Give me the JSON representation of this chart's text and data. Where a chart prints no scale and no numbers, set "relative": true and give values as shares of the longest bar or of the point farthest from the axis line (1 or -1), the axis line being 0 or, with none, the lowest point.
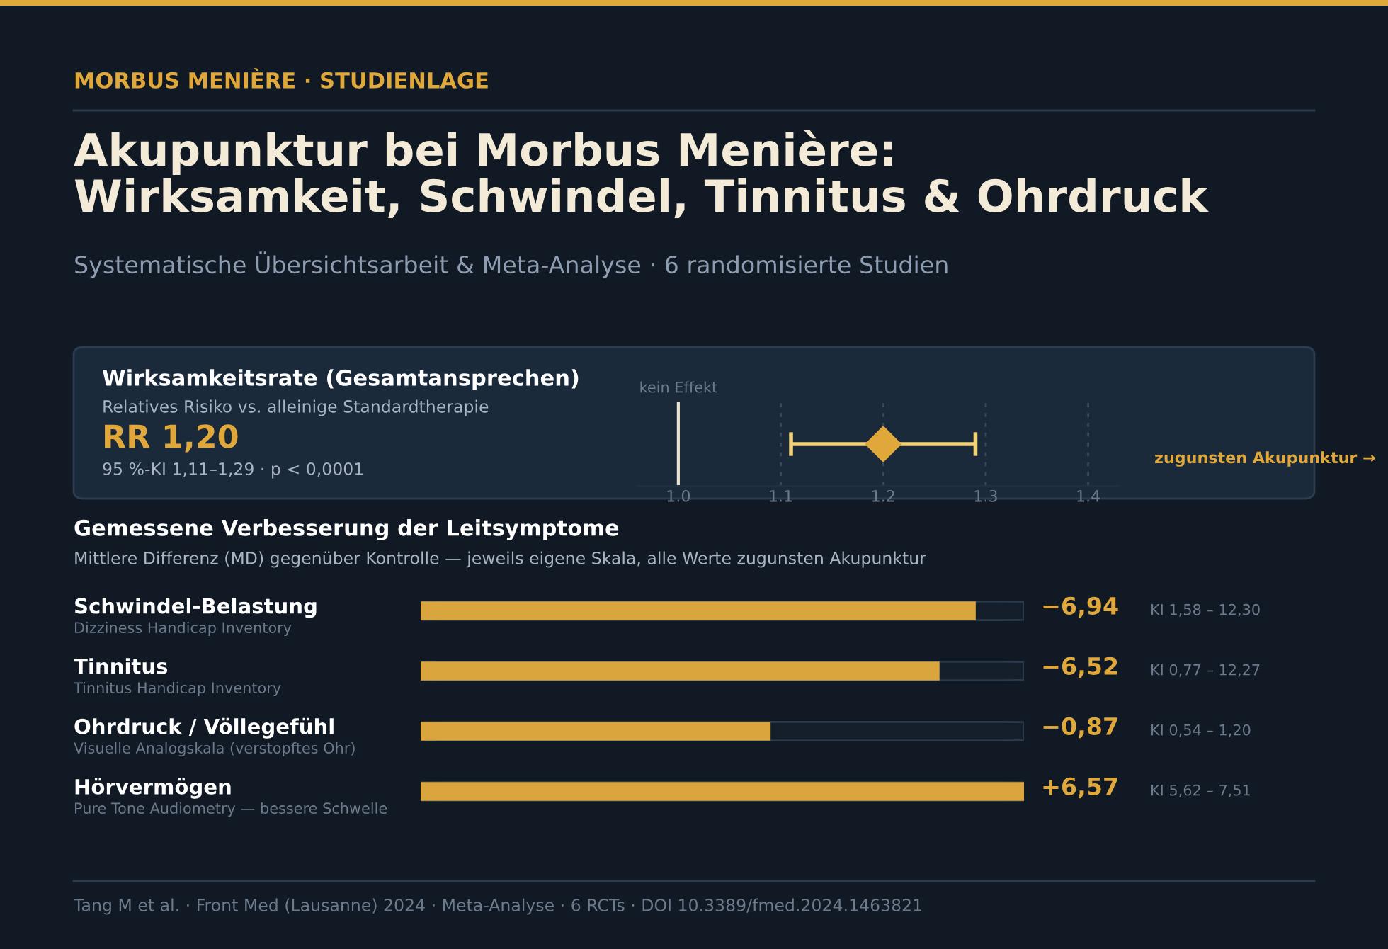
{
  "chart_data": [
    {
      "type": "scatter",
      "orientation": "horizontal",
      "categories": [
        null
      ],
      "values": [
        1.2
      ],
      "errors": [
        [
          1.11,
          1.29
        ]
      ],
      "color": "#e0a83a",
      "marker": "diamond",
      "xlim": [
        0.96,
        1.43
      ],
      "xticks": [
        {
          "value": 1.0,
          "label": "1.0"
        },
        1.1,
        1.2,
        1.3,
        1.4
      ],
      "grid": "x",
      "legend": false,
      "ref_lines": [
        {
          "axis": "x",
          "value": 1.0,
          "label": "kein Effekt",
          "color": "#e8e2d0"
        }
      ],
      "annotations": [
        "MORBUS MENIÈRE · STUDIENLAGE",
        "Akupunktur bei Morbus Menière:\nWirksamkeit, Schwindel, Tinnitus & Ohrdruck",
        "Systematische Übersichtsarbeit & Meta-Analyse · 6 randomisierte Studien",
        "Wirksamkeitsrate (Gesamtansprechen)",
        "Relatives Risiko vs. alleinige Standardtherapie",
        "RR 1,20",
        "95 %-KI 1,11–1,29 · p < 0,0001",
        "zugunsten Akupunktur →"
      ]
    },
    {
      "type": "bar",
      "orientation": "horizontal",
      "relative": true,
      "title": "Gemessene Verbesserung der Leitsymptome",
      "subtitle": "Mittlere Differenz (MD) gegenüber Kontrolle — jeweils eigene Skala, alle Werte zugunsten Akupunktur",
      "categories": [
        "Schwindel-Belastung",
        "Tinnitus",
        "Ohrdruck / Völlegefühl",
        "Hörvermögen"
      ],
      "values": [
        0.92,
        0.86,
        0.58,
        1.0
      ],
      "color": "#d9a53c",
      "legend": false,
      "grid": false,
      "annotations": [
        "Dizziness Handicap Inventory",
        "Tinnitus Handicap Inventory",
        "Visuelle Analogskala (verstopftes Ohr)",
        "Pure Tone Audiometry — bessere Schwelle",
        "−6,94",
        "−6,52",
        "−0,87",
        "+6,57",
        "KI 1,58 – 12,30",
        "KI 0,77 – 12,27",
        "KI 0,54 – 1,20",
        "KI 5,62 – 7,51",
        "Tang M et al. · Front Med (Lausanne) 2024 · Meta-Analyse · 6 RCTs · DOI 10.3389/fmed.2024.1463821"
      ]
    }
  ]
}
